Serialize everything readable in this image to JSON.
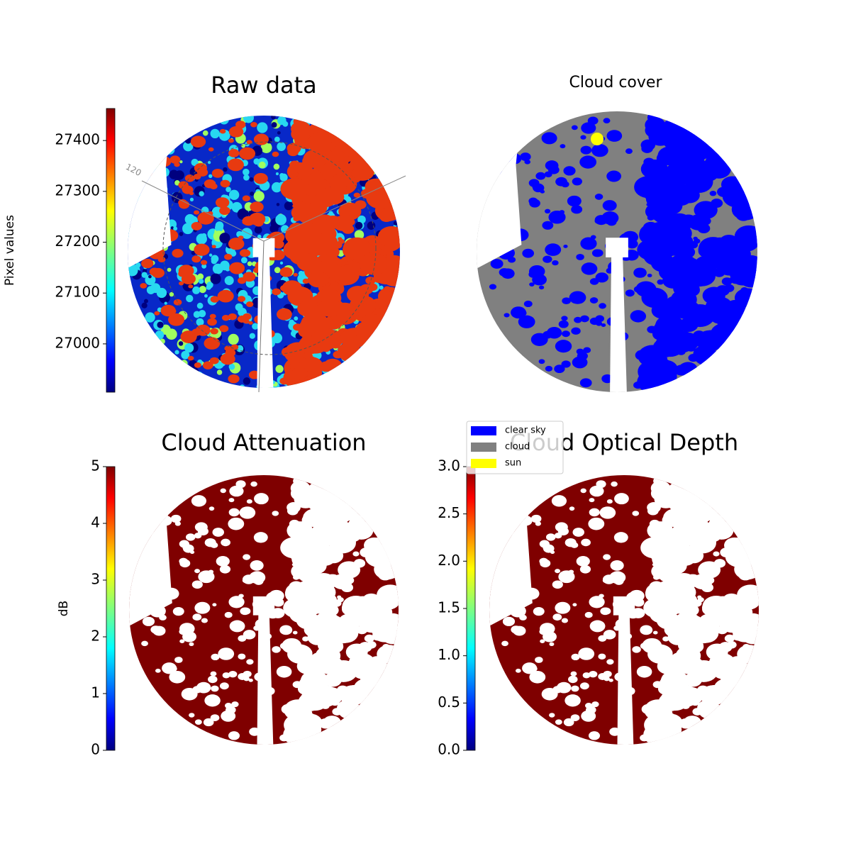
{
  "chart_data": [
    {
      "type": "image",
      "title": "Raw data",
      "colorbar_label": "Pixel values",
      "colormap": "jet",
      "ylim": [
        26905,
        27463
      ],
      "yticks": [
        27000,
        27100,
        27200,
        27300,
        27400
      ],
      "annotation": "120"
    },
    {
      "type": "mask",
      "title": "Cloud cover",
      "categories": [
        "clear sky",
        "cloud",
        "sun"
      ],
      "colors": [
        "#0000ff",
        "#808080",
        "#ffff00"
      ]
    },
    {
      "type": "image",
      "title": "Cloud Attenuation",
      "colorbar_label": "dB",
      "colormap": "jet",
      "ylim": [
        0,
        5
      ],
      "yticks": [
        0,
        1,
        2,
        3,
        4,
        5
      ]
    },
    {
      "type": "image",
      "title": "Cloud Optical Depth",
      "colormap": "jet",
      "ylim": [
        0,
        3
      ],
      "yticks": [
        {
          "value": 0,
          "label": "0.0"
        },
        {
          "value": 0.5,
          "label": "0.5"
        },
        {
          "value": 1,
          "label": "1.0"
        },
        {
          "value": 1.5,
          "label": "1.5"
        },
        {
          "value": 2,
          "label": "2.0"
        },
        {
          "value": 2.5,
          "label": "2.5"
        },
        {
          "value": 3,
          "label": "3.0"
        }
      ]
    }
  ]
}
